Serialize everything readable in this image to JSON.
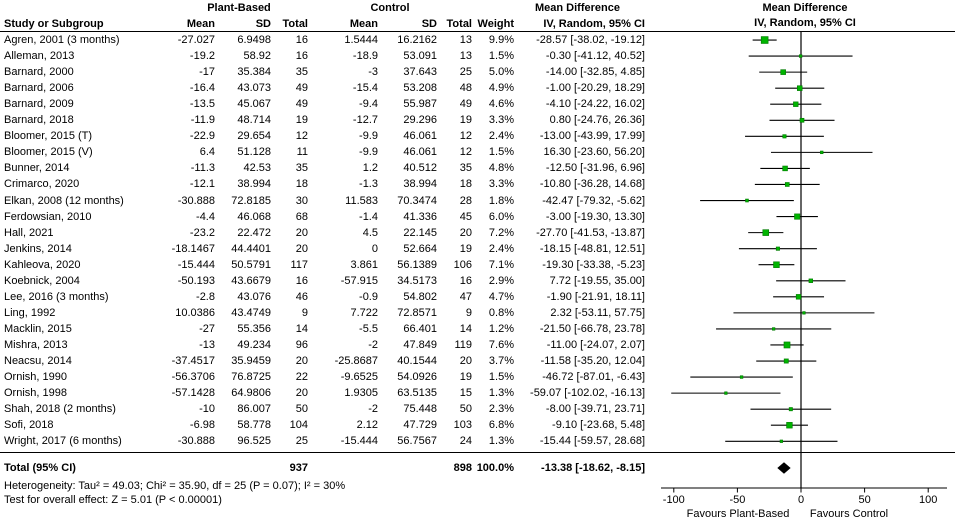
{
  "header": {
    "group_plant_based": "Plant-Based",
    "group_control": "Control",
    "group_md_text": "Mean Difference",
    "group_md_plot": "Mean Difference"
  },
  "columns": {
    "study": "Study or Subgroup",
    "mean": "Mean",
    "sd": "SD",
    "total": "Total",
    "weight": "Weight",
    "iv": "IV, Random, 95% CI"
  },
  "colors": {
    "marker": "#00b400",
    "marker_border": "#007a00",
    "diamond": "#000000",
    "line": "#000000"
  },
  "chart_data": {
    "type": "forest",
    "title": "Mean Difference, IV, Random, 95% CI",
    "axis": {
      "ticks": [
        -100,
        -50,
        0,
        50,
        100
      ],
      "range": [
        -110,
        115
      ],
      "favours_left": "Favours Plant-Based",
      "favours_right": "Favours Control"
    },
    "studies": [
      {
        "study": "Agren, 2001 (3 months)",
        "pb_mean": "-27.027",
        "pb_sd": "6.9498",
        "pb_total": "16",
        "c_mean": "1.5444",
        "c_sd": "16.2162",
        "c_total": "13",
        "weight": "9.9%",
        "weight_val": 9.9,
        "md_label": "-28.57 [-38.02, -19.12]",
        "est": -28.57,
        "lo": -38.02,
        "hi": -19.12
      },
      {
        "study": "Alleman, 2013",
        "pb_mean": "-19.2",
        "pb_sd": "58.92",
        "pb_total": "16",
        "c_mean": "-18.9",
        "c_sd": "53.091",
        "c_total": "13",
        "weight": "1.5%",
        "weight_val": 1.5,
        "md_label": "-0.30 [-41.12, 40.52]",
        "est": -0.3,
        "lo": -41.12,
        "hi": 40.52
      },
      {
        "study": "Barnard, 2000",
        "pb_mean": "-17",
        "pb_sd": "35.384",
        "pb_total": "35",
        "c_mean": "-3",
        "c_sd": "37.643",
        "c_total": "25",
        "weight": "5.0%",
        "weight_val": 5.0,
        "md_label": "-14.00 [-32.85, 4.85]",
        "est": -14.0,
        "lo": -32.85,
        "hi": 4.85
      },
      {
        "study": "Barnard, 2006",
        "pb_mean": "-16.4",
        "pb_sd": "43.073",
        "pb_total": "49",
        "c_mean": "-15.4",
        "c_sd": "53.208",
        "c_total": "48",
        "weight": "4.9%",
        "weight_val": 4.9,
        "md_label": "-1.00 [-20.29, 18.29]",
        "est": -1.0,
        "lo": -20.29,
        "hi": 18.29
      },
      {
        "study": "Barnard, 2009",
        "pb_mean": "-13.5",
        "pb_sd": "45.067",
        "pb_total": "49",
        "c_mean": "-9.4",
        "c_sd": "55.987",
        "c_total": "49",
        "weight": "4.6%",
        "weight_val": 4.6,
        "md_label": "-4.10 [-24.22, 16.02]",
        "est": -4.1,
        "lo": -24.22,
        "hi": 16.02
      },
      {
        "study": "Barnard, 2018",
        "pb_mean": "-11.9",
        "pb_sd": "48.714",
        "pb_total": "19",
        "c_mean": "-12.7",
        "c_sd": "29.296",
        "c_total": "19",
        "weight": "3.3%",
        "weight_val": 3.3,
        "md_label": "0.80 [-24.76, 26.36]",
        "est": 0.8,
        "lo": -24.76,
        "hi": 26.36
      },
      {
        "study": "Bloomer, 2015 (T)",
        "pb_mean": "-22.9",
        "pb_sd": "29.654",
        "pb_total": "12",
        "c_mean": "-9.9",
        "c_sd": "46.061",
        "c_total": "12",
        "weight": "2.4%",
        "weight_val": 2.4,
        "md_label": "-13.00 [-43.99, 17.99]",
        "est": -13.0,
        "lo": -43.99,
        "hi": 17.99
      },
      {
        "study": "Bloomer, 2015 (V)",
        "pb_mean": "6.4",
        "pb_sd": "51.128",
        "pb_total": "11",
        "c_mean": "-9.9",
        "c_sd": "46.061",
        "c_total": "12",
        "weight": "1.5%",
        "weight_val": 1.5,
        "md_label": "16.30 [-23.60, 56.20]",
        "est": 16.3,
        "lo": -23.6,
        "hi": 56.2
      },
      {
        "study": "Bunner, 2014",
        "pb_mean": "-11.3",
        "pb_sd": "42.53",
        "pb_total": "35",
        "c_mean": "1.2",
        "c_sd": "40.512",
        "c_total": "35",
        "weight": "4.8%",
        "weight_val": 4.8,
        "md_label": "-12.50 [-31.96, 6.96]",
        "est": -12.5,
        "lo": -31.96,
        "hi": 6.96
      },
      {
        "study": "Crimarco, 2020",
        "pb_mean": "-12.1",
        "pb_sd": "38.994",
        "pb_total": "18",
        "c_mean": "-1.3",
        "c_sd": "38.994",
        "c_total": "18",
        "weight": "3.3%",
        "weight_val": 3.3,
        "md_label": "-10.80 [-36.28, 14.68]",
        "est": -10.8,
        "lo": -36.28,
        "hi": 14.68
      },
      {
        "study": "Elkan, 2008 (12 months)",
        "pb_mean": "-30.888",
        "pb_sd": "72.8185",
        "pb_total": "30",
        "c_mean": "11.583",
        "c_sd": "70.3474",
        "c_total": "28",
        "weight": "1.8%",
        "weight_val": 1.8,
        "md_label": "-42.47 [-79.32, -5.62]",
        "est": -42.47,
        "lo": -79.32,
        "hi": -5.62
      },
      {
        "study": "Ferdowsian, 2010",
        "pb_mean": "-4.4",
        "pb_sd": "46.068",
        "pb_total": "68",
        "c_mean": "-1.4",
        "c_sd": "41.336",
        "c_total": "45",
        "weight": "6.0%",
        "weight_val": 6.0,
        "md_label": "-3.00 [-19.30, 13.30]",
        "est": -3.0,
        "lo": -19.3,
        "hi": 13.3
      },
      {
        "study": "Hall, 2021",
        "pb_mean": "-23.2",
        "pb_sd": "22.472",
        "pb_total": "20",
        "c_mean": "4.5",
        "c_sd": "22.145",
        "c_total": "20",
        "weight": "7.2%",
        "weight_val": 7.2,
        "md_label": "-27.70 [-41.53, -13.87]",
        "est": -27.7,
        "lo": -41.53,
        "hi": -13.87
      },
      {
        "study": "Jenkins, 2014",
        "pb_mean": "-18.1467",
        "pb_sd": "44.4401",
        "pb_total": "20",
        "c_mean": "0",
        "c_sd": "52.664",
        "c_total": "19",
        "weight": "2.4%",
        "weight_val": 2.4,
        "md_label": "-18.15 [-48.81, 12.51]",
        "est": -18.15,
        "lo": -48.81,
        "hi": 12.51
      },
      {
        "study": "Kahleova, 2020",
        "pb_mean": "-15.444",
        "pb_sd": "50.5791",
        "pb_total": "117",
        "c_mean": "3.861",
        "c_sd": "56.1389",
        "c_total": "106",
        "weight": "7.1%",
        "weight_val": 7.1,
        "md_label": "-19.30 [-33.38, -5.23]",
        "est": -19.3,
        "lo": -33.38,
        "hi": -5.23
      },
      {
        "study": "Koebnick, 2004",
        "pb_mean": "-50.193",
        "pb_sd": "43.6679",
        "pb_total": "16",
        "c_mean": "-57.915",
        "c_sd": "34.5173",
        "c_total": "16",
        "weight": "2.9%",
        "weight_val": 2.9,
        "md_label": "7.72 [-19.55, 35.00]",
        "est": 7.72,
        "lo": -19.55,
        "hi": 35.0
      },
      {
        "study": "Lee, 2016 (3 months)",
        "pb_mean": "-2.8",
        "pb_sd": "43.076",
        "pb_total": "46",
        "c_mean": "-0.9",
        "c_sd": "54.802",
        "c_total": "47",
        "weight": "4.7%",
        "weight_val": 4.7,
        "md_label": "-1.90 [-21.91, 18.11]",
        "est": -1.9,
        "lo": -21.91,
        "hi": 18.11
      },
      {
        "study": "Ling, 1992",
        "pb_mean": "10.0386",
        "pb_sd": "43.4749",
        "pb_total": "9",
        "c_mean": "7.722",
        "c_sd": "72.8571",
        "c_total": "9",
        "weight": "0.8%",
        "weight_val": 0.8,
        "md_label": "2.32 [-53.11, 57.75]",
        "est": 2.32,
        "lo": -53.11,
        "hi": 57.75
      },
      {
        "study": "Macklin, 2015",
        "pb_mean": "-27",
        "pb_sd": "55.356",
        "pb_total": "14",
        "c_mean": "-5.5",
        "c_sd": "66.401",
        "c_total": "14",
        "weight": "1.2%",
        "weight_val": 1.2,
        "md_label": "-21.50 [-66.78, 23.78]",
        "est": -21.5,
        "lo": -66.78,
        "hi": 23.78
      },
      {
        "study": "Mishra, 2013",
        "pb_mean": "-13",
        "pb_sd": "49.234",
        "pb_total": "96",
        "c_mean": "-2",
        "c_sd": "47.849",
        "c_total": "119",
        "weight": "7.6%",
        "weight_val": 7.6,
        "md_label": "-11.00 [-24.07, 2.07]",
        "est": -11.0,
        "lo": -24.07,
        "hi": 2.07
      },
      {
        "study": "Neacsu, 2014",
        "pb_mean": "-37.4517",
        "pb_sd": "35.9459",
        "pb_total": "20",
        "c_mean": "-25.8687",
        "c_sd": "40.1544",
        "c_total": "20",
        "weight": "3.7%",
        "weight_val": 3.7,
        "md_label": "-11.58 [-35.20, 12.04]",
        "est": -11.58,
        "lo": -35.2,
        "hi": 12.04
      },
      {
        "study": "Ornish, 1990",
        "pb_mean": "-56.3706",
        "pb_sd": "76.8725",
        "pb_total": "22",
        "c_mean": "-9.6525",
        "c_sd": "54.0926",
        "c_total": "19",
        "weight": "1.5%",
        "weight_val": 1.5,
        "md_label": "-46.72 [-87.01, -6.43]",
        "est": -46.72,
        "lo": -87.01,
        "hi": -6.43
      },
      {
        "study": "Ornish, 1998",
        "pb_mean": "-57.1428",
        "pb_sd": "64.9806",
        "pb_total": "20",
        "c_mean": "1.9305",
        "c_sd": "63.5135",
        "c_total": "15",
        "weight": "1.3%",
        "weight_val": 1.3,
        "md_label": "-59.07 [-102.02, -16.13]",
        "est": -59.07,
        "lo": -102.02,
        "hi": -16.13
      },
      {
        "study": "Shah, 2018 (2 months)",
        "pb_mean": "-10",
        "pb_sd": "86.007",
        "pb_total": "50",
        "c_mean": "-2",
        "c_sd": "75.448",
        "c_total": "50",
        "weight": "2.3%",
        "weight_val": 2.3,
        "md_label": "-8.00 [-39.71, 23.71]",
        "est": -8.0,
        "lo": -39.71,
        "hi": 23.71
      },
      {
        "study": "Sofi, 2018",
        "pb_mean": "-6.98",
        "pb_sd": "58.778",
        "pb_total": "104",
        "c_mean": "2.12",
        "c_sd": "47.729",
        "c_total": "103",
        "weight": "6.8%",
        "weight_val": 6.8,
        "md_label": "-9.10 [-23.68, 5.48]",
        "est": -9.1,
        "lo": -23.68,
        "hi": 5.48
      },
      {
        "study": "Wright, 2017 (6 months)",
        "pb_mean": "-30.888",
        "pb_sd": "96.525",
        "pb_total": "25",
        "c_mean": "-15.444",
        "c_sd": "56.7567",
        "c_total": "24",
        "weight": "1.3%",
        "weight_val": 1.3,
        "md_label": "-15.44 [-59.57, 28.68]",
        "est": -15.44,
        "lo": -59.57,
        "hi": 28.68
      }
    ],
    "total": {
      "label": "Total (95% CI)",
      "pb_total": "937",
      "c_total": "898",
      "weight": "100.0%",
      "md_label": "-13.38 [-18.62, -8.15]",
      "est": -13.38,
      "lo": -18.62,
      "hi": -8.15
    },
    "heterogeneity": "Heterogeneity: Tau² = 49.03; Chi² = 35.90, df = 25 (P = 0.07); I² = 30%",
    "overall_effect": "Test for overall effect: Z = 5.01 (P < 0.00001)"
  }
}
